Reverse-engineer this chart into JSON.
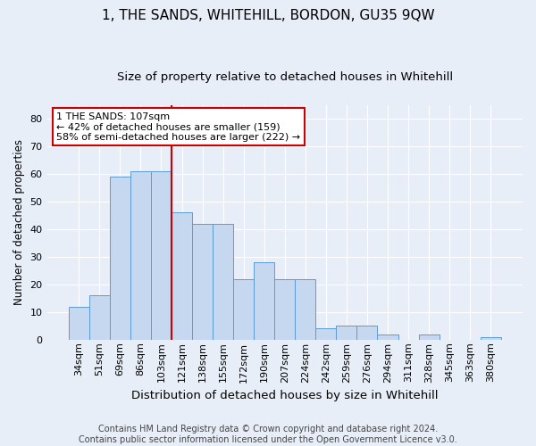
{
  "title": "1, THE SANDS, WHITEHILL, BORDON, GU35 9QW",
  "subtitle": "Size of property relative to detached houses in Whitehill",
  "xlabel": "Distribution of detached houses by size in Whitehill",
  "ylabel": "Number of detached properties",
  "categories": [
    "34sqm",
    "51sqm",
    "69sqm",
    "86sqm",
    "103sqm",
    "121sqm",
    "138sqm",
    "155sqm",
    "172sqm",
    "190sqm",
    "207sqm",
    "224sqm",
    "242sqm",
    "259sqm",
    "276sqm",
    "294sqm",
    "311sqm",
    "328sqm",
    "345sqm",
    "363sqm",
    "380sqm"
  ],
  "values": [
    12,
    16,
    59,
    61,
    61,
    46,
    42,
    42,
    22,
    28,
    22,
    22,
    4,
    5,
    5,
    2,
    0,
    2,
    0,
    0,
    1
  ],
  "bar_color": "#c5d8f0",
  "bar_edge_color": "#5b9bd5",
  "vline_x_index": 4,
  "vline_color": "#cc0000",
  "annotation_text": "1 THE SANDS: 107sqm\n← 42% of detached houses are smaller (159)\n58% of semi-detached houses are larger (222) →",
  "annotation_box_color": "#ffffff",
  "annotation_box_edge_color": "#cc0000",
  "ylim": [
    0,
    85
  ],
  "yticks": [
    0,
    10,
    20,
    30,
    40,
    50,
    60,
    70,
    80
  ],
  "background_color": "#e8eef8",
  "grid_color": "#ffffff",
  "footer": "Contains HM Land Registry data © Crown copyright and database right 2024.\nContains public sector information licensed under the Open Government Licence v3.0.",
  "title_fontsize": 11,
  "subtitle_fontsize": 9.5,
  "xlabel_fontsize": 9.5,
  "ylabel_fontsize": 8.5,
  "tick_fontsize": 8,
  "footer_fontsize": 7,
  "annotation_fontsize": 8
}
